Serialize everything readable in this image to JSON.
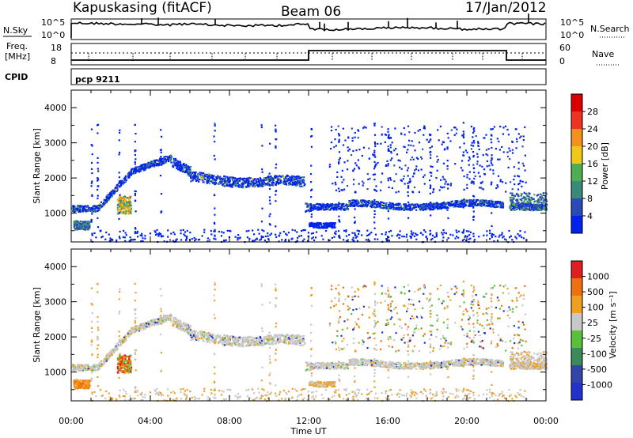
{
  "header": {
    "station": "Kapuskasing (fitACF)",
    "beam": "Beam 06",
    "date": "17/Jan/2012"
  },
  "noise_panel": {
    "left_label": "N.Sky",
    "right_label": "N.Search",
    "left_ticks": [
      "10^5",
      "10^0"
    ],
    "right_ticks": [
      "10^5",
      "10^0"
    ]
  },
  "freq_panel": {
    "left_label_1": "Freq.",
    "left_label_2": "[MHz]",
    "right_label": "Nave",
    "left_ticks": [
      "18",
      "8"
    ],
    "right_ticks": [
      "60",
      "0"
    ]
  },
  "cpid": {
    "label": "CPID",
    "program": "pcp 9211"
  },
  "chart_data": [
    {
      "type": "heatmap",
      "name": "power",
      "ylabel": "Slant Range [km]",
      "ylim": [
        180,
        4500
      ],
      "yticks": [
        "4000",
        "3000",
        "2000",
        "1000"
      ],
      "colorbar_label": "Power [dB]",
      "colorbar_ticks": [
        "28",
        "24",
        "20",
        "16",
        "12",
        "8",
        "4"
      ],
      "colors": [
        "#0022ee",
        "#2a4bb5",
        "#3a8a7a",
        "#4fae4f",
        "#f0c81a",
        "#f4901e",
        "#ee3322",
        "#dd0000"
      ]
    },
    {
      "type": "heatmap",
      "name": "velocity",
      "ylabel": "Slant Range [km]",
      "ylim": [
        180,
        4500
      ],
      "yticks": [
        "4000",
        "3000",
        "2000",
        "1000"
      ],
      "colorbar_label": "Velocity [m s⁻¹]",
      "colorbar_ticks": [
        "1000",
        "500",
        "100",
        "25",
        "-25",
        "-100",
        "-500",
        "-1000"
      ],
      "colors": [
        "#2233cc",
        "#3344aa",
        "#3a8a5a",
        "#59c03a",
        "#c8c8c8",
        "#f0a020",
        "#f07010",
        "#e02020"
      ],
      "xlabel": "Time UT",
      "xticks": [
        "00:00",
        "04:00",
        "08:00",
        "12:00",
        "16:00",
        "20:00",
        "00:00"
      ],
      "xlim": [
        0,
        24
      ]
    }
  ]
}
